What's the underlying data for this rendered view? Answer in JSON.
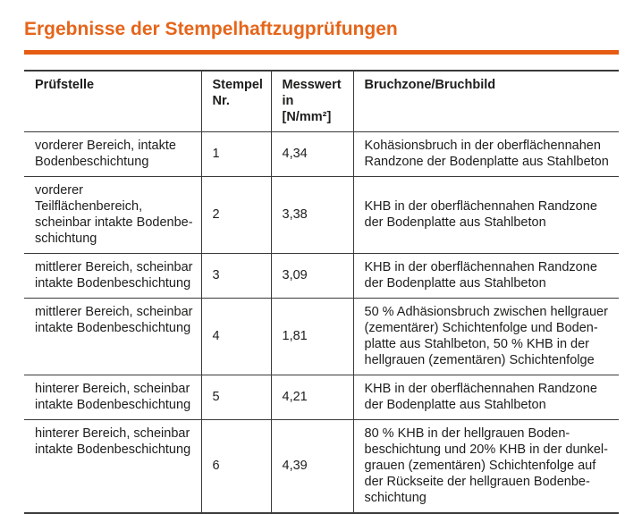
{
  "page": {
    "title": "Ergebnisse der Stempelhaftzugprüfungen",
    "accent_color": "#e5651a"
  },
  "table": {
    "headers": {
      "pruefstelle": "Prüfstelle",
      "stempel_nr": "Stempel\nNr.",
      "messwert": "Messwert\nin [N/mm²]",
      "bruchzone": "Bruchzone/Bruchbild"
    },
    "rows": [
      {
        "pruefstelle": "vorderer Bereich, intakte\nBodenbeschichtung",
        "stempel_nr": "1",
        "messwert": "4,34",
        "bruchzone": "Kohäsionsbruch in der oberflächennahen\nRandzone der Bodenplatte aus Stahlbeton"
      },
      {
        "pruefstelle": "vorderer Teilflächenbereich,\nscheinbar intakte Bodenbe-\nschichtung",
        "stempel_nr": "2",
        "messwert": "3,38",
        "bruchzone": "KHB in der oberflächennahen Randzone\nder Bodenplatte aus Stahlbeton"
      },
      {
        "pruefstelle": "mittlerer Bereich, scheinbar\nintakte Bodenbeschichtung",
        "stempel_nr": "3",
        "messwert": "3,09",
        "bruchzone": "KHB in der oberflächennahen Randzone\nder Bodenplatte aus Stahlbeton"
      },
      {
        "pruefstelle": "mittlerer Bereich, scheinbar\nintakte Bodenbeschichtung",
        "stempel_nr": "4",
        "messwert": "1,81",
        "bruchzone": "50 % Adhäsionsbruch zwischen hellgrauer\n(zementärer) Schichtenfolge und Boden-\nplatte aus Stahlbeton, 50 % KHB in der\nhellgrauen (zementären) Schichtenfolge"
      },
      {
        "pruefstelle": "hinterer Bereich, scheinbar\nintakte Bodenbeschichtung",
        "stempel_nr": "5",
        "messwert": "4,21",
        "bruchzone": "KHB in der oberflächennahen Randzone\nder Bodenplatte aus Stahlbeton"
      },
      {
        "pruefstelle": "hinterer Bereich, scheinbar\nintakte Bodenbeschichtung",
        "stempel_nr": "6",
        "messwert": "4,39",
        "bruchzone": "80 % KHB in der hellgrauen Boden-\nbeschichtung und 20% KHB in der dunkel-\ngrauen (zementären) Schichtenfolge auf\nder Rückseite der hellgrauen Bodenbe-\nschichtung"
      }
    ]
  }
}
